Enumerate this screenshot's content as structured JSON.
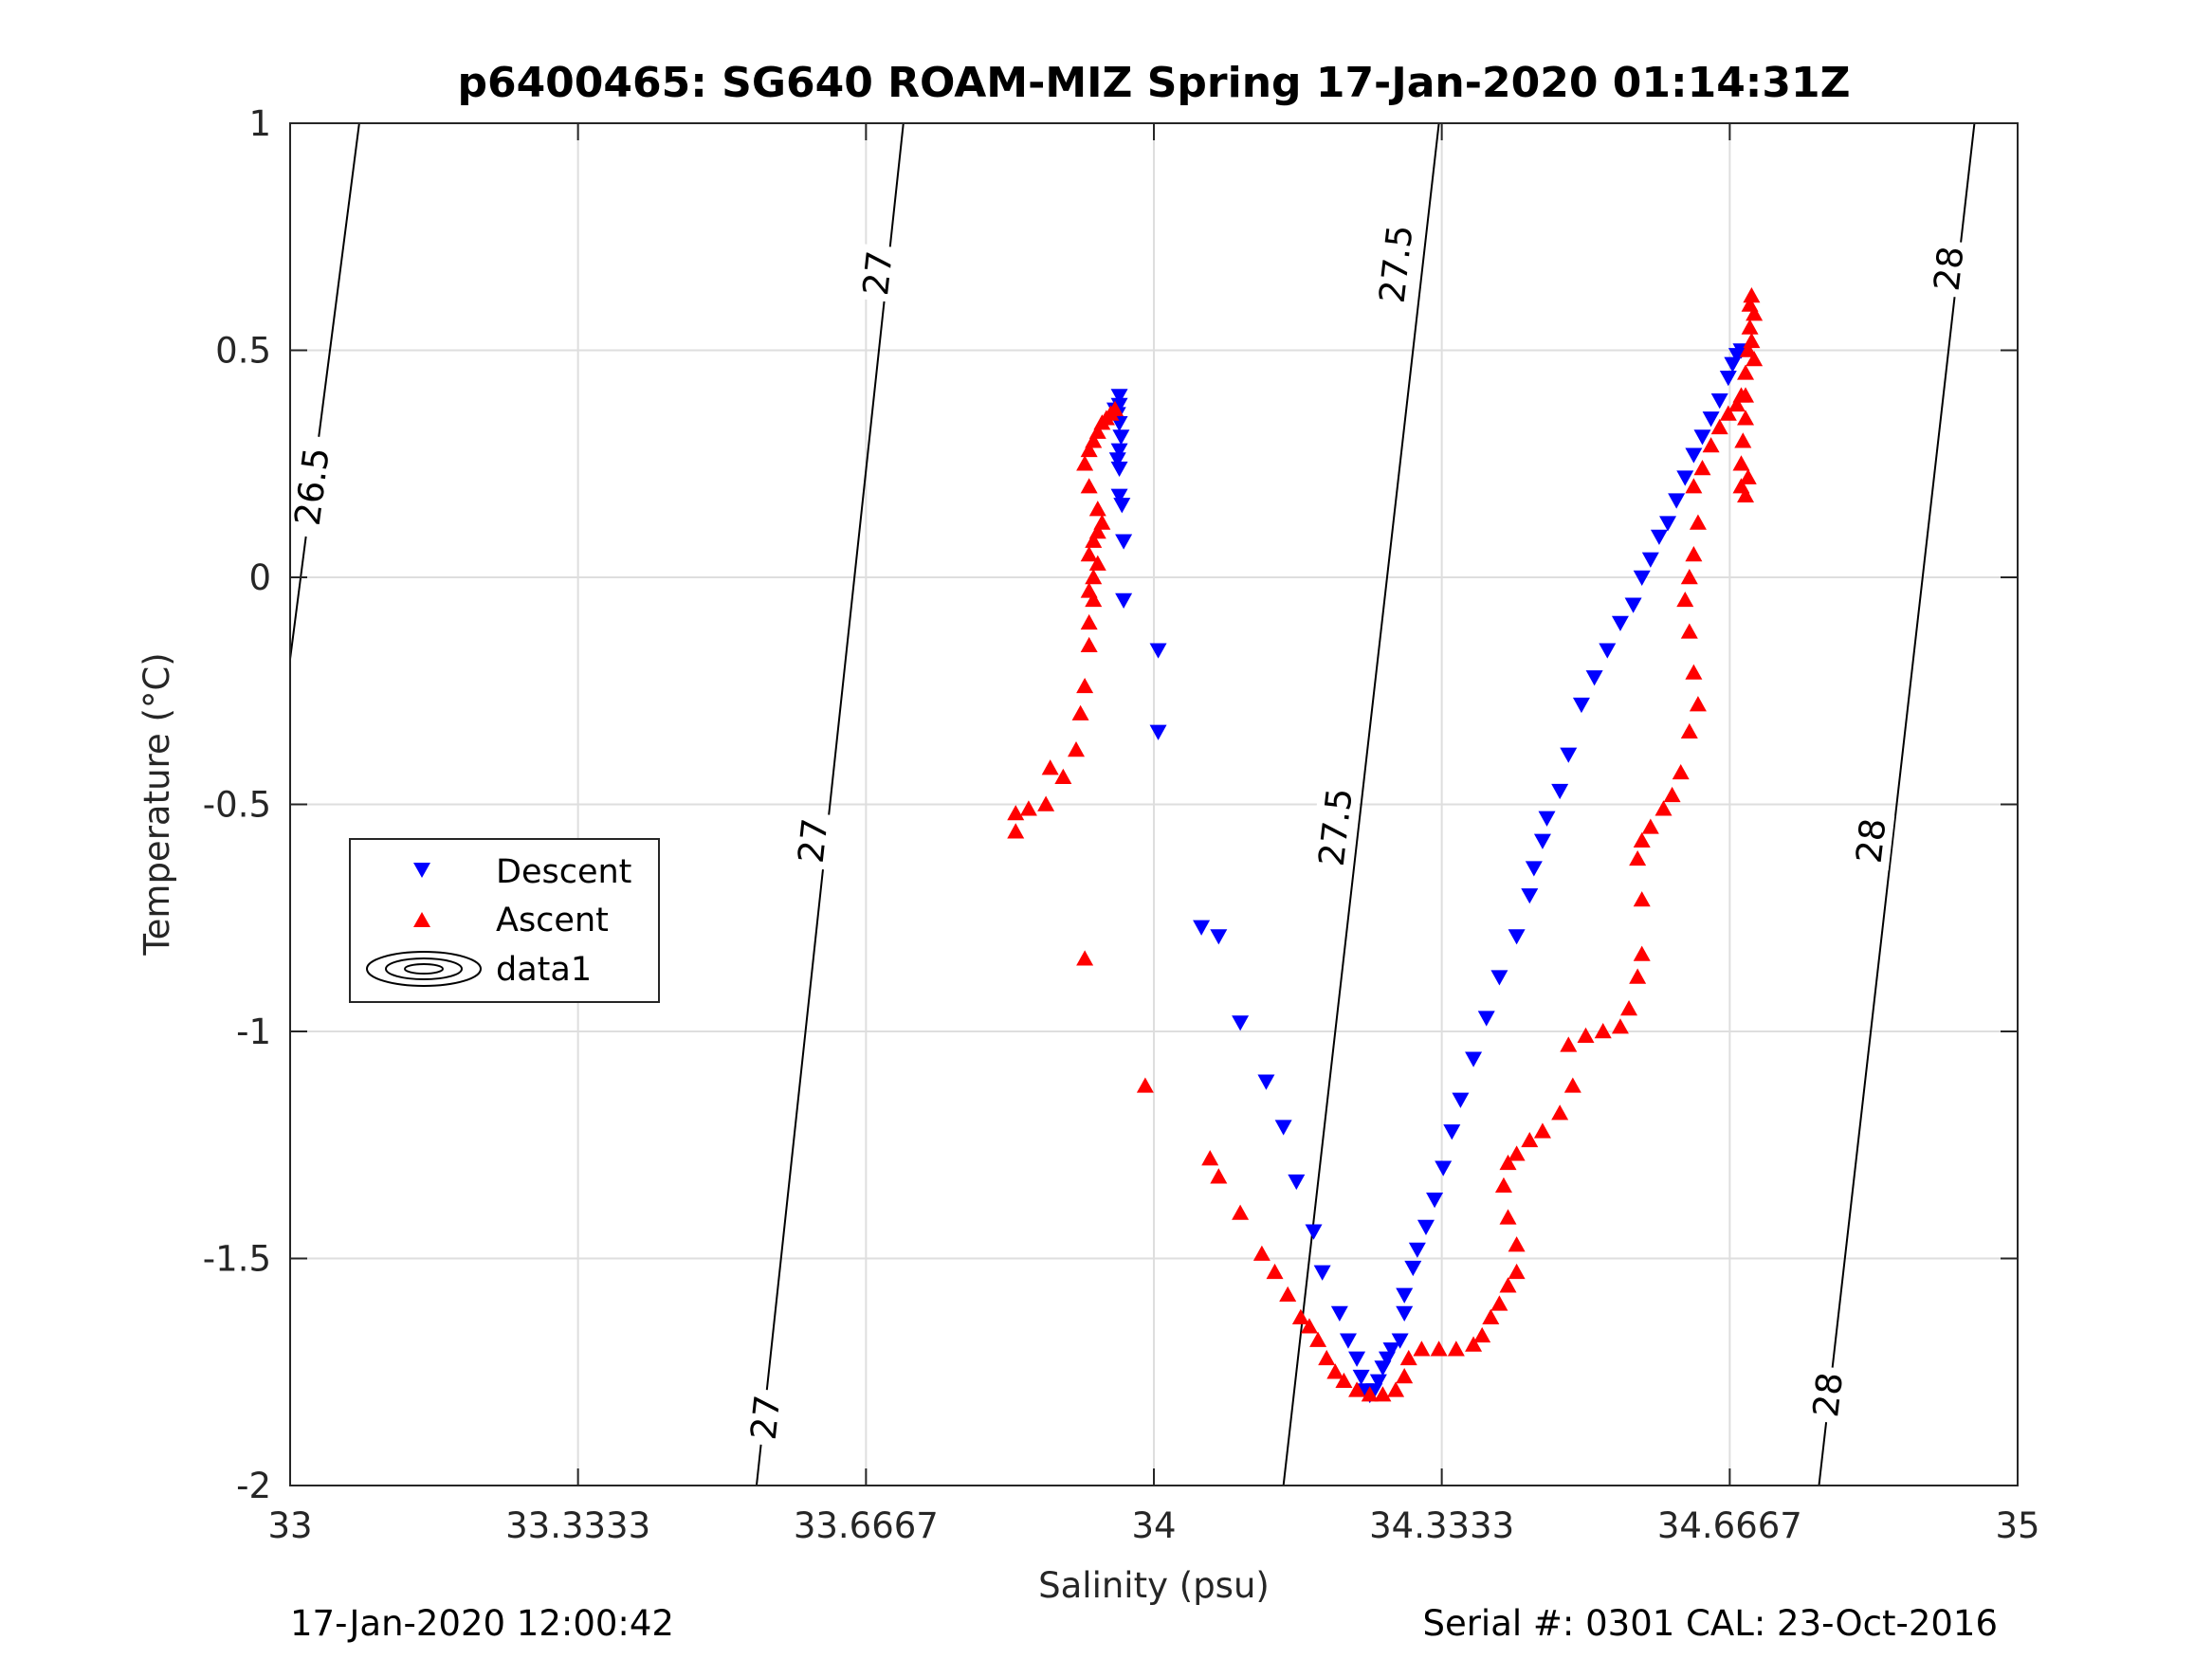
{
  "figure": {
    "title": "p6400465: SG640 ROAM-MIZ Spring 17-Jan-2020 01:14:31Z",
    "footer_left": "17-Jan-2020 12:00:42",
    "footer_right": "Serial #: 0301  CAL: 23-Oct-2016"
  },
  "chart_data": {
    "type": "scatter",
    "title": "p6400465: SG640 ROAM-MIZ Spring 17-Jan-2020 01:14:31Z",
    "xlabel": "Salinity (psu)",
    "ylabel": "Temperature (°C)",
    "xlim": [
      33,
      35
    ],
    "ylim": [
      -2,
      1
    ],
    "xticks": [
      33,
      33.3333,
      33.6667,
      34,
      34.3333,
      34.6667,
      35
    ],
    "xtick_labels": [
      "33",
      "33.3333",
      "33.6667",
      "34",
      "34.3333",
      "34.6667",
      "35"
    ],
    "yticks": [
      -2,
      -1.5,
      -1,
      -0.5,
      0,
      0.5,
      1
    ],
    "ytick_labels": [
      "-2",
      "-1.5",
      "-1",
      "-0.5",
      "0",
      "0.5",
      "1"
    ],
    "grid": true,
    "legend": {
      "placement": "left-middle",
      "entries": [
        {
          "label": "Descent",
          "color": "#0000ff",
          "marker": "triangle-down"
        },
        {
          "label": "Ascent",
          "color": "#ff0000",
          "marker": "triangle-up"
        },
        {
          "label": "data1",
          "color": "#000000",
          "marker": "contour"
        }
      ]
    },
    "contours": [
      {
        "level": "26.5",
        "points": [
          [
            33.0,
            -0.18
          ],
          [
            33.08,
            1.0
          ]
        ],
        "labels": [
          [
            33.025,
            0.2
          ]
        ]
      },
      {
        "level": "27",
        "points": [
          [
            33.54,
            -2.0
          ],
          [
            33.71,
            1.0
          ]
        ],
        "labels": [
          [
            33.55,
            -1.85
          ],
          [
            33.605,
            -0.58
          ],
          [
            33.68,
            0.67
          ]
        ]
      },
      {
        "level": "27.5",
        "points": [
          [
            34.15,
            -2.0
          ],
          [
            34.33,
            1.0
          ]
        ],
        "labels": [
          [
            34.21,
            -0.55
          ],
          [
            34.28,
            0.69
          ]
        ]
      },
      {
        "level": "28",
        "points": [
          [
            34.77,
            -2.0
          ],
          [
            34.95,
            1.0
          ]
        ],
        "labels": [
          [
            34.78,
            -1.8
          ],
          [
            34.83,
            -0.58
          ],
          [
            34.92,
            0.68
          ]
        ]
      }
    ],
    "series": [
      {
        "name": "Descent",
        "color": "#0000ff",
        "marker": "triangle-down",
        "points": [
          [
            33.96,
            0.4
          ],
          [
            33.96,
            0.38
          ],
          [
            33.958,
            0.36
          ],
          [
            33.955,
            0.37
          ],
          [
            33.96,
            0.34
          ],
          [
            33.962,
            0.31
          ],
          [
            33.96,
            0.28
          ],
          [
            33.958,
            0.26
          ],
          [
            33.96,
            0.24
          ],
          [
            33.96,
            0.18
          ],
          [
            33.963,
            0.16
          ],
          [
            33.965,
            0.08
          ],
          [
            33.965,
            -0.05
          ],
          [
            34.005,
            -0.16
          ],
          [
            34.005,
            -0.34
          ],
          [
            34.055,
            -0.77
          ],
          [
            34.075,
            -0.79
          ],
          [
            34.1,
            -0.98
          ],
          [
            34.13,
            -1.11
          ],
          [
            34.15,
            -1.21
          ],
          [
            34.165,
            -1.33
          ],
          [
            34.185,
            -1.44
          ],
          [
            34.195,
            -1.53
          ],
          [
            34.215,
            -1.62
          ],
          [
            34.225,
            -1.68
          ],
          [
            34.235,
            -1.72
          ],
          [
            34.24,
            -1.76
          ],
          [
            34.245,
            -1.79
          ],
          [
            34.25,
            -1.8
          ],
          [
            34.255,
            -1.79
          ],
          [
            34.26,
            -1.77
          ],
          [
            34.265,
            -1.74
          ],
          [
            34.27,
            -1.72
          ],
          [
            34.275,
            -1.7
          ],
          [
            34.285,
            -1.68
          ],
          [
            34.29,
            -1.62
          ],
          [
            34.29,
            -1.58
          ],
          [
            34.3,
            -1.52
          ],
          [
            34.305,
            -1.48
          ],
          [
            34.315,
            -1.43
          ],
          [
            34.325,
            -1.37
          ],
          [
            34.335,
            -1.3
          ],
          [
            34.345,
            -1.22
          ],
          [
            34.355,
            -1.15
          ],
          [
            34.37,
            -1.06
          ],
          [
            34.385,
            -0.97
          ],
          [
            34.4,
            -0.88
          ],
          [
            34.42,
            -0.79
          ],
          [
            34.435,
            -0.7
          ],
          [
            34.44,
            -0.64
          ],
          [
            34.45,
            -0.58
          ],
          [
            34.455,
            -0.53
          ],
          [
            34.47,
            -0.47
          ],
          [
            34.48,
            -0.39
          ],
          [
            34.495,
            -0.28
          ],
          [
            34.51,
            -0.22
          ],
          [
            34.525,
            -0.16
          ],
          [
            34.54,
            -0.1
          ],
          [
            34.555,
            -0.06
          ],
          [
            34.565,
            0.0
          ],
          [
            34.575,
            0.04
          ],
          [
            34.585,
            0.09
          ],
          [
            34.595,
            0.12
          ],
          [
            34.605,
            0.17
          ],
          [
            34.615,
            0.22
          ],
          [
            34.625,
            0.27
          ],
          [
            34.635,
            0.31
          ],
          [
            34.645,
            0.35
          ],
          [
            34.655,
            0.39
          ],
          [
            34.665,
            0.44
          ],
          [
            34.67,
            0.47
          ],
          [
            34.675,
            0.49
          ],
          [
            34.68,
            0.5
          ]
        ]
      },
      {
        "name": "Ascent",
        "color": "#ff0000",
        "marker": "triangle-up",
        "points": [
          [
            33.84,
            -0.52
          ],
          [
            33.84,
            -0.56
          ],
          [
            33.855,
            -0.51
          ],
          [
            33.875,
            -0.5
          ],
          [
            33.88,
            -0.42
          ],
          [
            33.895,
            -0.44
          ],
          [
            33.91,
            -0.38
          ],
          [
            33.915,
            -0.3
          ],
          [
            33.92,
            -0.24
          ],
          [
            33.925,
            -0.15
          ],
          [
            33.925,
            -0.1
          ],
          [
            33.93,
            -0.05
          ],
          [
            33.925,
            -0.03
          ],
          [
            33.93,
            0.0
          ],
          [
            33.935,
            0.03
          ],
          [
            33.925,
            0.05
          ],
          [
            33.93,
            0.08
          ],
          [
            33.935,
            0.1
          ],
          [
            33.94,
            0.12
          ],
          [
            33.935,
            0.15
          ],
          [
            33.925,
            0.2
          ],
          [
            33.92,
            0.25
          ],
          [
            33.925,
            0.28
          ],
          [
            33.93,
            0.3
          ],
          [
            33.935,
            0.32
          ],
          [
            33.94,
            0.34
          ],
          [
            33.945,
            0.35
          ],
          [
            33.95,
            0.36
          ],
          [
            33.955,
            0.37
          ],
          [
            33.92,
            -0.84
          ],
          [
            33.99,
            -1.12
          ],
          [
            34.065,
            -1.28
          ],
          [
            34.075,
            -1.32
          ],
          [
            34.1,
            -1.4
          ],
          [
            34.125,
            -1.49
          ],
          [
            34.14,
            -1.53
          ],
          [
            34.155,
            -1.58
          ],
          [
            34.17,
            -1.63
          ],
          [
            34.18,
            -1.65
          ],
          [
            34.19,
            -1.68
          ],
          [
            34.2,
            -1.72
          ],
          [
            34.21,
            -1.75
          ],
          [
            34.22,
            -1.77
          ],
          [
            34.235,
            -1.79
          ],
          [
            34.25,
            -1.8
          ],
          [
            34.265,
            -1.8
          ],
          [
            34.28,
            -1.79
          ],
          [
            34.29,
            -1.76
          ],
          [
            34.295,
            -1.72
          ],
          [
            34.31,
            -1.7
          ],
          [
            34.33,
            -1.7
          ],
          [
            34.35,
            -1.7
          ],
          [
            34.37,
            -1.69
          ],
          [
            34.38,
            -1.67
          ],
          [
            34.39,
            -1.63
          ],
          [
            34.4,
            -1.6
          ],
          [
            34.41,
            -1.56
          ],
          [
            34.42,
            -1.53
          ],
          [
            34.42,
            -1.47
          ],
          [
            34.41,
            -1.41
          ],
          [
            34.405,
            -1.34
          ],
          [
            34.41,
            -1.29
          ],
          [
            34.42,
            -1.27
          ],
          [
            34.435,
            -1.24
          ],
          [
            34.45,
            -1.22
          ],
          [
            34.47,
            -1.18
          ],
          [
            34.485,
            -1.12
          ],
          [
            34.48,
            -1.03
          ],
          [
            34.5,
            -1.01
          ],
          [
            34.52,
            -1.0
          ],
          [
            34.54,
            -0.99
          ],
          [
            34.55,
            -0.95
          ],
          [
            34.56,
            -0.88
          ],
          [
            34.565,
            -0.83
          ],
          [
            34.565,
            -0.71
          ],
          [
            34.56,
            -0.62
          ],
          [
            34.565,
            -0.58
          ],
          [
            34.575,
            -0.55
          ],
          [
            34.59,
            -0.51
          ],
          [
            34.6,
            -0.48
          ],
          [
            34.61,
            -0.43
          ],
          [
            34.62,
            -0.34
          ],
          [
            34.63,
            -0.28
          ],
          [
            34.625,
            -0.21
          ],
          [
            34.62,
            -0.12
          ],
          [
            34.615,
            -0.05
          ],
          [
            34.62,
            0.0
          ],
          [
            34.625,
            0.05
          ],
          [
            34.63,
            0.12
          ],
          [
            34.625,
            0.2
          ],
          [
            34.635,
            0.24
          ],
          [
            34.645,
            0.29
          ],
          [
            34.655,
            0.33
          ],
          [
            34.665,
            0.36
          ],
          [
            34.675,
            0.38
          ],
          [
            34.68,
            0.4
          ],
          [
            34.68,
            0.2
          ],
          [
            34.68,
            0.25
          ],
          [
            34.682,
            0.3
          ],
          [
            34.685,
            0.35
          ],
          [
            34.685,
            0.4
          ],
          [
            34.685,
            0.45
          ],
          [
            34.688,
            0.5
          ],
          [
            34.69,
            0.55
          ],
          [
            34.69,
            0.6
          ],
          [
            34.692,
            0.62
          ],
          [
            34.695,
            0.58
          ],
          [
            34.688,
            0.22
          ],
          [
            34.685,
            0.18
          ],
          [
            34.692,
            0.52
          ],
          [
            34.695,
            0.48
          ]
        ]
      }
    ]
  }
}
